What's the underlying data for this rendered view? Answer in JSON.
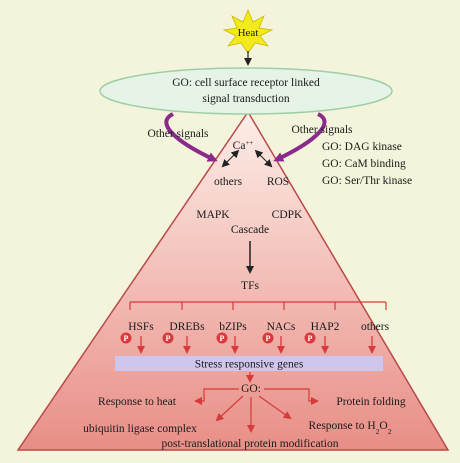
{
  "colors": {
    "background": "#f4f4dc",
    "pyramid_top": "#fdeee8",
    "pyramid_bottom": "#e88e86",
    "pyramid_stroke": "#b84a48",
    "ellipse_fill": "#e6f4e8",
    "ellipse_stroke": "#9ecfa4",
    "sun": "#f2ea1c",
    "arrow_red": "#d63a3a",
    "arrow_purple": "#8a2a8a",
    "band_fill": "#cfc6ee",
    "p_badge": "#d43c3c"
  },
  "diagram": {
    "heat_label": "Heat",
    "receptor_line1": "GO: cell surface receptor linked",
    "receptor_line2": "signal transduction",
    "other_signals_left": "Other signals",
    "other_signals_right": "Other signals",
    "calcium_base": "Ca",
    "calcium_sup": "++",
    "others_label": "others",
    "ros_label": "ROS",
    "go_terms_right": [
      "GO: DAG kinase",
      "GO: CaM binding",
      "GO: Ser/Thr kinase"
    ],
    "mapk_label": "MAPK",
    "cdpk_label": "CDPK",
    "cascade_label": "Cascade",
    "tfs_label": "TFs",
    "tf_families": [
      "HSFs",
      "DREBs",
      "bZIPs",
      "NACs",
      "HAP2",
      "others"
    ],
    "phospho_badge": "P",
    "stress_genes": "Stress responsive genes",
    "go_label": "GO:",
    "response_heat": "Response to heat",
    "protein_folding": "Protein folding",
    "ubiquitin": "ubiquitin ligase complex",
    "response_h2o2_prefix": "Response to H",
    "response_h2o2_sub1": "2",
    "response_h2o2_o": "O",
    "response_h2o2_sub2": "2",
    "post_translational": "post-translational protein modification"
  }
}
